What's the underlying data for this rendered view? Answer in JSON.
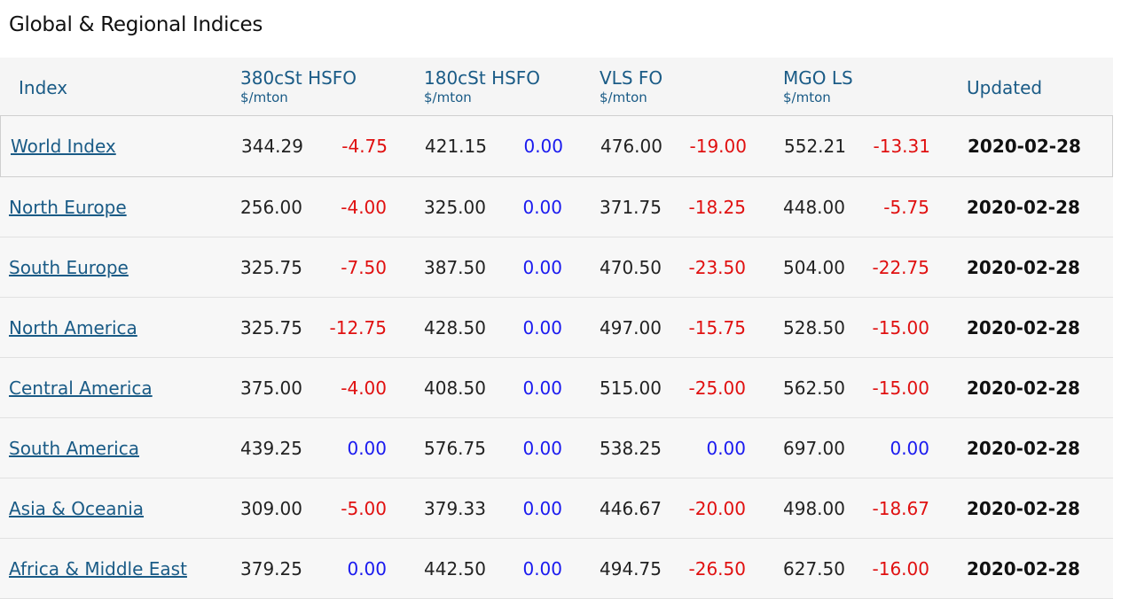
{
  "title": "Global & Regional Indices",
  "headers": {
    "index": "Index",
    "hsfo380": {
      "label": "380cSt HSFO",
      "unit": "$/mton"
    },
    "hsfo180": {
      "label": "180cSt HSFO",
      "unit": "$/mton"
    },
    "vlsfo": {
      "label": "VLS FO",
      "unit": "$/mton"
    },
    "mgols": {
      "label": "MGO LS",
      "unit": "$/mton"
    },
    "updated": "Updated"
  },
  "colors": {
    "link": "#1a5b86",
    "negative": "#e01010",
    "zero": "#1a1aef"
  },
  "rows": [
    {
      "name": "World Index",
      "p1": "344.29",
      "c1": "-4.75",
      "p2": "421.15",
      "c2": "0.00",
      "p3": "476.00",
      "c3": "-19.00",
      "p4": "552.21",
      "c4": "-13.31",
      "updated": "2020-02-28"
    },
    {
      "name": "North Europe",
      "p1": "256.00",
      "c1": "-4.00",
      "p2": "325.00",
      "c2": "0.00",
      "p3": "371.75",
      "c3": "-18.25",
      "p4": "448.00",
      "c4": "-5.75",
      "updated": "2020-02-28"
    },
    {
      "name": "South Europe",
      "p1": "325.75",
      "c1": "-7.50",
      "p2": "387.50",
      "c2": "0.00",
      "p3": "470.50",
      "c3": "-23.50",
      "p4": "504.00",
      "c4": "-22.75",
      "updated": "2020-02-28"
    },
    {
      "name": "North America",
      "p1": "325.75",
      "c1": "-12.75",
      "p2": "428.50",
      "c2": "0.00",
      "p3": "497.00",
      "c3": "-15.75",
      "p4": "528.50",
      "c4": "-15.00",
      "updated": "2020-02-28"
    },
    {
      "name": "Central America",
      "p1": "375.00",
      "c1": "-4.00",
      "p2": "408.50",
      "c2": "0.00",
      "p3": "515.00",
      "c3": "-25.00",
      "p4": "562.50",
      "c4": "-15.00",
      "updated": "2020-02-28"
    },
    {
      "name": "South America",
      "p1": "439.25",
      "c1": "0.00",
      "p2": "576.75",
      "c2": "0.00",
      "p3": "538.25",
      "c3": "0.00",
      "p4": "697.00",
      "c4": "0.00",
      "updated": "2020-02-28"
    },
    {
      "name": "Asia & Oceania",
      "p1": "309.00",
      "c1": "-5.00",
      "p2": "379.33",
      "c2": "0.00",
      "p3": "446.67",
      "c3": "-20.00",
      "p4": "498.00",
      "c4": "-18.67",
      "updated": "2020-02-28"
    },
    {
      "name": "Africa & Middle East",
      "p1": "379.25",
      "c1": "0.00",
      "p2": "442.50",
      "c2": "0.00",
      "p3": "494.75",
      "c3": "-26.50",
      "p4": "627.50",
      "c4": "-16.00",
      "updated": "2020-02-28"
    }
  ]
}
